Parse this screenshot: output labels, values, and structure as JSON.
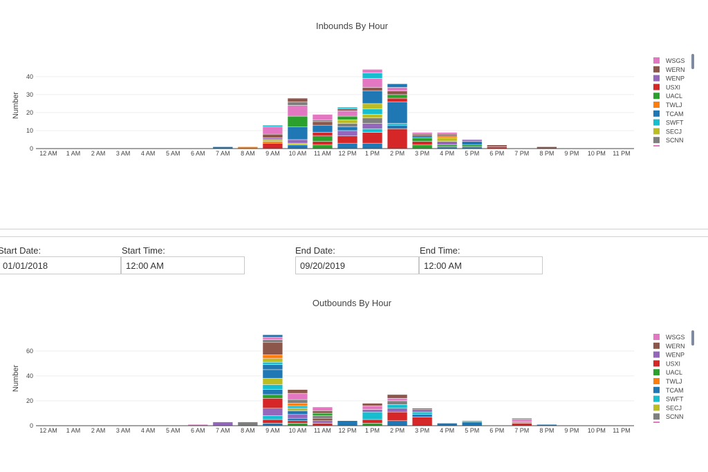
{
  "colors": {
    "WSGS": "#e377c2",
    "WERN": "#8c564b",
    "WENP": "#9467bd",
    "USXI": "#d62728",
    "UACL": "#2ca02c",
    "TWLJ": "#ff7f0e",
    "TCAM": "#1f77b4",
    "SWFT": "#17becf",
    "SECJ": "#bcbd22",
    "SCNN": "#7f7f7f"
  },
  "legend": [
    "WSGS",
    "WERN",
    "WENP",
    "USXI",
    "UACL",
    "TWLJ",
    "TCAM",
    "SWFT",
    "SECJ",
    "SCNN"
  ],
  "form": {
    "start_date_label": "Start Date:",
    "start_date_value": "01/01/2018",
    "start_time_label": "Start Time:",
    "start_time_value": "12:00 AM",
    "end_date_label": "End Date:",
    "end_date_value": "09/20/2019",
    "end_time_label": "End Time:",
    "end_time_value": "12:00 AM"
  },
  "chart_data": [
    {
      "type": "bar",
      "stacked": true,
      "title": "Inbounds By Hour",
      "xlabel": "",
      "ylabel": "Number",
      "ylim": [
        0,
        48
      ],
      "yticks": [
        0,
        10,
        20,
        30,
        40
      ],
      "categories": [
        "12 AM",
        "1 AM",
        "2 AM",
        "3 AM",
        "4 AM",
        "5 AM",
        "6 AM",
        "7 AM",
        "8 AM",
        "9 AM",
        "10 AM",
        "11 AM",
        "12 PM",
        "1 PM",
        "2 PM",
        "3 PM",
        "4 PM",
        "5 PM",
        "6 PM",
        "7 PM",
        "8 PM",
        "9 PM",
        "10 PM",
        "11 PM"
      ],
      "legend_position": "right",
      "stacks": [
        [],
        [],
        [],
        [],
        [],
        [],
        [],
        [
          [
            "TCAM",
            1
          ]
        ],
        [
          [
            "TWLJ",
            1
          ]
        ],
        [
          [
            "USXI",
            3
          ],
          [
            "TWLJ",
            1
          ],
          [
            "SECJ",
            1
          ],
          [
            "WENP",
            1
          ],
          [
            "WERN",
            2
          ],
          [
            "WSGS",
            4
          ],
          [
            "SWFT",
            1
          ]
        ],
        [
          [
            "TCAM",
            2
          ],
          [
            "SECJ",
            1
          ],
          [
            "WENP",
            2
          ],
          [
            "TCAM",
            7
          ],
          [
            "UACL",
            6
          ],
          [
            "WSGS",
            6
          ],
          [
            "SCNN",
            2
          ],
          [
            "WERN",
            2
          ]
        ],
        [
          [
            "UACL",
            2
          ],
          [
            "USXI",
            2
          ],
          [
            "UACL",
            3
          ],
          [
            "USXI",
            2
          ],
          [
            "TCAM",
            4
          ],
          [
            "WERN",
            2
          ],
          [
            "SCNN",
            1
          ],
          [
            "WSGS",
            3
          ]
        ],
        [
          [
            "TCAM",
            3
          ],
          [
            "USXI",
            4
          ],
          [
            "WENP",
            3
          ],
          [
            "TCAM",
            2
          ],
          [
            "SCNN",
            2
          ],
          [
            "SECJ",
            2
          ],
          [
            "UACL",
            2
          ],
          [
            "WSGS",
            3
          ],
          [
            "WERN",
            1
          ],
          [
            "SWFT",
            1
          ]
        ],
        [
          [
            "TCAM",
            3
          ],
          [
            "USXI",
            6
          ],
          [
            "SWFT",
            2
          ],
          [
            "WENP",
            3
          ],
          [
            "SCNN",
            3
          ],
          [
            "SECJ",
            2
          ],
          [
            "SWFT",
            3
          ],
          [
            "SECJ",
            3
          ],
          [
            "TCAM",
            7
          ],
          [
            "WERN",
            2
          ],
          [
            "WSGS",
            5
          ],
          [
            "SWFT",
            3
          ],
          [
            "WSGS",
            2
          ]
        ],
        [
          [
            "USXI",
            11
          ],
          [
            "TCAM",
            2
          ],
          [
            "SWFT",
            1
          ],
          [
            "TCAM",
            12
          ],
          [
            "USXI",
            2
          ],
          [
            "UACL",
            2
          ],
          [
            "WERN",
            2
          ],
          [
            "WSGS",
            2
          ],
          [
            "TCAM",
            2
          ]
        ],
        [
          [
            "UACL",
            2
          ],
          [
            "USXI",
            2
          ],
          [
            "UACL",
            2
          ],
          [
            "TCAM",
            1
          ],
          [
            "WERN",
            1
          ],
          [
            "WSGS",
            1
          ]
        ],
        [
          [
            "TCAM",
            1
          ],
          [
            "UACL",
            1
          ],
          [
            "WENP",
            2
          ],
          [
            "SECJ",
            2
          ],
          [
            "TWLJ",
            1
          ],
          [
            "WERN",
            1
          ],
          [
            "WSGS",
            1
          ]
        ],
        [
          [
            "TCAM",
            1
          ],
          [
            "UACL",
            1
          ],
          [
            "TCAM",
            2
          ],
          [
            "WENP",
            1
          ]
        ],
        [
          [
            "USXI",
            1
          ],
          [
            "WERN",
            1
          ]
        ],
        [],
        [
          [
            "WERN",
            1
          ]
        ],
        [],
        [],
        []
      ]
    },
    {
      "type": "bar",
      "stacked": true,
      "title": "Outbounds By Hour",
      "xlabel": "",
      "ylabel": "Number",
      "ylim": [
        0,
        76
      ],
      "yticks": [
        0,
        20,
        40,
        60
      ],
      "categories": [
        "12 AM",
        "1 AM",
        "2 AM",
        "3 AM",
        "4 AM",
        "5 AM",
        "6 AM",
        "7 AM",
        "8 AM",
        "9 AM",
        "10 AM",
        "11 AM",
        "12 PM",
        "1 PM",
        "2 PM",
        "3 PM",
        "4 PM",
        "5 PM",
        "6 PM",
        "7 PM",
        "8 PM",
        "9 PM",
        "10 PM",
        "11 PM"
      ],
      "legend_position": "right",
      "stacks": [
        [],
        [],
        [],
        [],
        [],
        [],
        [
          [
            "WSGS",
            1
          ]
        ],
        [
          [
            "WENP",
            3
          ]
        ],
        [
          [
            "SCNN",
            3
          ]
        ],
        [
          [
            "TCAM",
            2
          ],
          [
            "USXI",
            3
          ],
          [
            "SWFT",
            3
          ],
          [
            "WENP",
            6
          ],
          [
            "USXI",
            8
          ],
          [
            "UACL",
            3
          ],
          [
            "TCAM",
            4
          ],
          [
            "SWFT",
            4
          ],
          [
            "SECJ",
            5
          ],
          [
            "TCAM",
            7
          ],
          [
            "TCAM",
            4
          ],
          [
            "SWFT",
            2
          ],
          [
            "SECJ",
            3
          ],
          [
            "TWLJ",
            3
          ],
          [
            "WERN",
            10
          ],
          [
            "SCNN",
            2
          ],
          [
            "WSGS",
            2
          ],
          [
            "TCAM",
            2
          ]
        ],
        [
          [
            "UACL",
            2
          ],
          [
            "USXI",
            2
          ],
          [
            "TCAM",
            2
          ],
          [
            "WENP",
            3
          ],
          [
            "TCAM",
            3
          ],
          [
            "SECJ",
            2
          ],
          [
            "SWFT",
            2
          ],
          [
            "TWLJ",
            2
          ],
          [
            "SCNN",
            3
          ],
          [
            "WSGS",
            5
          ],
          [
            "WERN",
            3
          ]
        ],
        [
          [
            "USXI",
            2
          ],
          [
            "WENP",
            2
          ],
          [
            "WERN",
            2
          ],
          [
            "SCNN",
            2
          ],
          [
            "UACL",
            2
          ],
          [
            "WERN",
            2
          ],
          [
            "WSGS",
            3
          ]
        ],
        [
          [
            "TCAM",
            4
          ]
        ],
        [
          [
            "UACL",
            2
          ],
          [
            "USXI",
            3
          ],
          [
            "SWFT",
            6
          ],
          [
            "WENP",
            2
          ],
          [
            "WSGS",
            3
          ],
          [
            "WERN",
            2
          ]
        ],
        [
          [
            "TCAM",
            4
          ],
          [
            "USXI",
            7
          ],
          [
            "WENP",
            3
          ],
          [
            "SWFT",
            3
          ],
          [
            "SCNN",
            3
          ],
          [
            "WSGS",
            2
          ],
          [
            "WERN",
            3
          ]
        ],
        [
          [
            "USXI",
            7
          ],
          [
            "TCAM",
            2
          ],
          [
            "SWFT",
            2
          ],
          [
            "WENP",
            2
          ],
          [
            "WERN",
            1
          ]
        ],
        [
          [
            "TCAM",
            2
          ]
        ],
        [
          [
            "TCAM",
            3
          ],
          [
            "SWFT",
            1
          ]
        ],
        [],
        [
          [
            "USXI",
            2
          ],
          [
            "TWLJ",
            1
          ],
          [
            "WSGS",
            2
          ],
          [
            "SCNN",
            1
          ]
        ],
        [
          [
            "TCAM",
            1
          ]
        ],
        [],
        [],
        []
      ]
    }
  ]
}
